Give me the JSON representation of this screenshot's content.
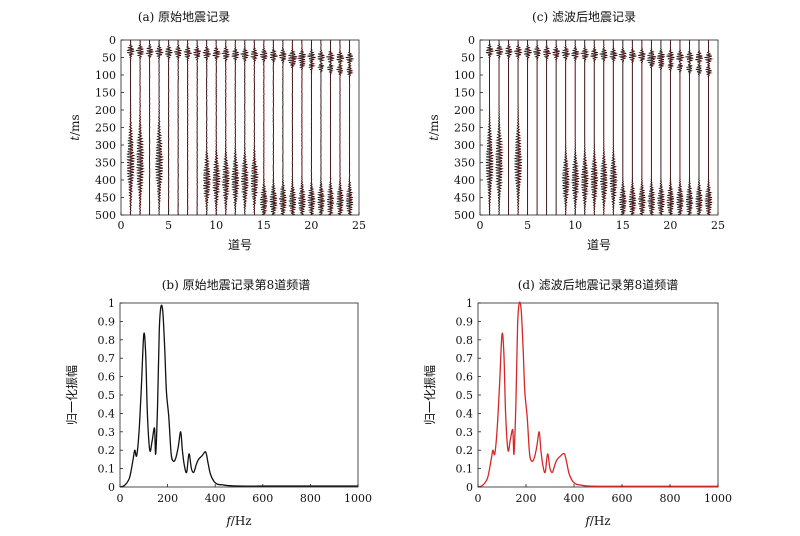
{
  "chart_data": [
    {
      "id": "a",
      "type": "seismic-wiggle",
      "title": "(a) 原始地震记录",
      "xlabel": "道号",
      "ylabel_italic": "t",
      "ylabel_rest": "/ms",
      "xlim": [
        0,
        25
      ],
      "ylim": [
        0,
        500
      ],
      "y_inverted": true,
      "x_ticks": [
        0,
        5,
        10,
        15,
        20,
        25
      ],
      "y_ticks": [
        0,
        50,
        100,
        150,
        200,
        250,
        300,
        350,
        400,
        450,
        500
      ],
      "trace_count": 24,
      "colors": {
        "positive": "#d62728",
        "wiggle": "#111111",
        "baseline": "#888888"
      },
      "events": [
        {
          "name": "direct",
          "t0": 30,
          "slope": 0.6,
          "traces": "all"
        },
        {
          "name": "reflection-1",
          "t_range": [
            200,
            500
          ],
          "traces": [
            1,
            2,
            4
          ]
        },
        {
          "name": "reflection-2",
          "t_range": [
            310,
            500
          ],
          "traces": [
            9,
            10,
            11,
            12,
            13,
            14
          ]
        },
        {
          "name": "reflection-3",
          "t_range": [
            380,
            500
          ],
          "traces": [
            15,
            16,
            17,
            18,
            19,
            20,
            21,
            22,
            23,
            24
          ]
        }
      ]
    },
    {
      "id": "c",
      "type": "seismic-wiggle",
      "title": "(c) 滤波后地震记录",
      "xlabel": "道号",
      "ylabel_italic": "t",
      "ylabel_rest": "/ms",
      "xlim": [
        0,
        25
      ],
      "ylim": [
        0,
        500
      ],
      "y_inverted": true,
      "x_ticks": [
        0,
        5,
        10,
        15,
        20,
        25
      ],
      "y_ticks": [
        0,
        50,
        100,
        150,
        200,
        250,
        300,
        350,
        400,
        450,
        500
      ],
      "trace_count": 24,
      "colors": {
        "positive": "#d62728",
        "wiggle": "#111111",
        "baseline": "#888888"
      }
    },
    {
      "id": "b",
      "type": "line",
      "title": "(b) 原始地震记录第8道频谱",
      "xlabel_italic": "f",
      "xlabel_rest": "/Hz",
      "ylabel": "归一化振幅",
      "xlim": [
        0,
        1000
      ],
      "ylim": [
        0,
        1
      ],
      "x_ticks": [
        0,
        200,
        400,
        600,
        800,
        1000
      ],
      "y_ticks": [
        0,
        0.1,
        0.2,
        0.3,
        0.4,
        0.5,
        0.6,
        0.7,
        0.8,
        0.9,
        1
      ],
      "color": "#111111",
      "x": [
        0,
        20,
        40,
        55,
        62,
        70,
        80,
        90,
        100,
        108,
        115,
        125,
        135,
        145,
        150,
        158,
        165,
        172,
        180,
        188,
        195,
        205,
        215,
        225,
        235,
        245,
        255,
        262,
        270,
        280,
        290,
        300,
        310,
        320,
        330,
        345,
        360,
        370,
        380,
        395,
        410,
        430,
        450,
        500,
        600,
        700,
        800,
        900,
        1000
      ],
      "y": [
        0,
        0.01,
        0.05,
        0.15,
        0.2,
        0.17,
        0.3,
        0.55,
        0.83,
        0.72,
        0.4,
        0.2,
        0.25,
        0.32,
        0.18,
        0.45,
        0.85,
        0.98,
        0.95,
        0.75,
        0.52,
        0.38,
        0.18,
        0.14,
        0.16,
        0.22,
        0.3,
        0.2,
        0.12,
        0.08,
        0.18,
        0.1,
        0.08,
        0.12,
        0.15,
        0.17,
        0.19,
        0.13,
        0.07,
        0.03,
        0.015,
        0.012,
        0.008,
        0.005,
        0.005,
        0.005,
        0.005,
        0.005,
        0.005
      ]
    },
    {
      "id": "d",
      "type": "line",
      "title": "(d) 滤波后地震记录第8道频谱",
      "xlabel_italic": "f",
      "xlabel_rest": "/Hz",
      "ylabel": "归一化振幅",
      "xlim": [
        0,
        1000
      ],
      "ylim": [
        0,
        1
      ],
      "x_ticks": [
        0,
        200,
        400,
        600,
        800,
        1000
      ],
      "y_ticks": [
        0,
        0.1,
        0.2,
        0.3,
        0.4,
        0.5,
        0.6,
        0.7,
        0.8,
        0.9,
        1
      ],
      "color": "#d62728",
      "x": [
        0,
        20,
        40,
        55,
        62,
        70,
        80,
        90,
        100,
        108,
        115,
        125,
        135,
        145,
        150,
        158,
        165,
        172,
        180,
        188,
        195,
        205,
        215,
        225,
        235,
        245,
        255,
        262,
        270,
        280,
        290,
        300,
        310,
        320,
        330,
        345,
        360,
        370,
        380,
        395,
        410,
        430,
        450,
        500,
        600,
        700,
        800,
        900,
        1000
      ],
      "y": [
        0,
        0.01,
        0.05,
        0.15,
        0.2,
        0.18,
        0.32,
        0.56,
        0.83,
        0.72,
        0.4,
        0.2,
        0.26,
        0.31,
        0.18,
        0.46,
        0.88,
        1.0,
        0.96,
        0.75,
        0.52,
        0.38,
        0.18,
        0.14,
        0.16,
        0.22,
        0.3,
        0.2,
        0.12,
        0.08,
        0.18,
        0.1,
        0.08,
        0.12,
        0.15,
        0.17,
        0.18,
        0.13,
        0.07,
        0.03,
        0.015,
        0.01,
        0.006,
        0.004,
        0.004,
        0.004,
        0.004,
        0.004,
        0.004
      ]
    }
  ]
}
